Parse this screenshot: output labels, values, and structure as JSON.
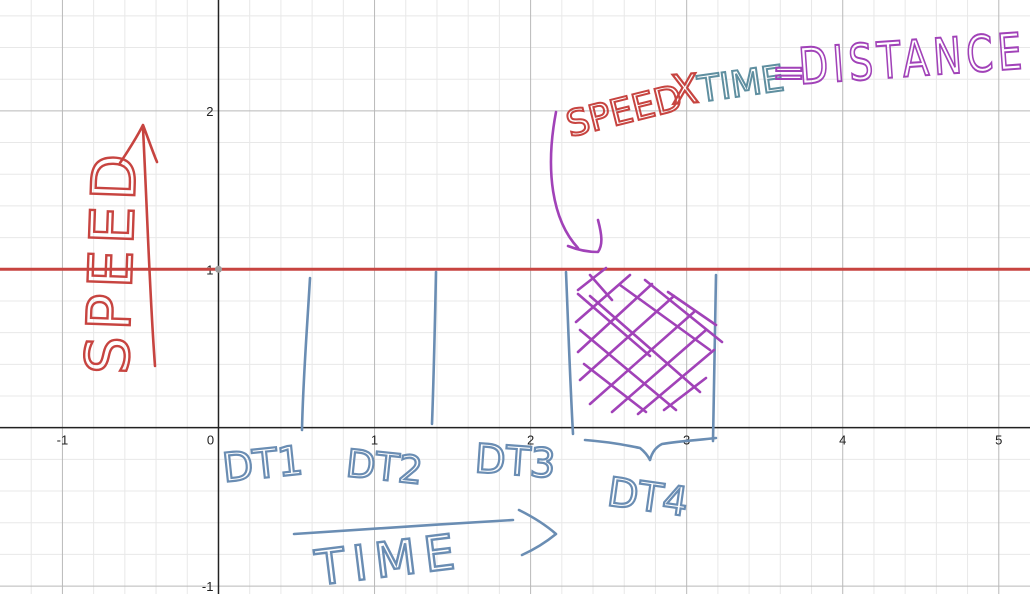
{
  "chart_data": {
    "type": "line",
    "title": "",
    "xlim": [
      -1.4,
      5.2
    ],
    "ylim": [
      -1.05,
      2.7
    ],
    "x_ticks": [
      -1,
      0,
      1,
      2,
      3,
      4,
      5
    ],
    "y_ticks": [
      -1,
      1,
      2
    ],
    "origin_label": "0",
    "series": [
      {
        "name": "speed",
        "expression": "y = 1",
        "x": [
          -1.4,
          5.2
        ],
        "y": [
          1,
          1
        ],
        "color": "#c74440"
      }
    ],
    "intervals": [
      {
        "label": "DT1",
        "x_end": 0.55
      },
      {
        "label": "DT2",
        "x_end": 1.37
      },
      {
        "label": "DT3",
        "x_end": 2.25
      },
      {
        "label": "DT4",
        "x_start": 2.25,
        "x_end": 3.2,
        "shaded": true
      }
    ],
    "annotations": {
      "y_axis_label": "SPEED",
      "x_axis_label": "TIME",
      "formula_speed": "SPEED",
      "formula_times": "X",
      "formula_time": "TIME",
      "formula_eq": "=",
      "formula_distance": "DISTANCE"
    },
    "colors": {
      "line": "#c74440",
      "blue_ink": "#6a8db3",
      "purple_ink": "#a142b8",
      "red_ink": "#c74440",
      "teal_ink": "#5f8fa0"
    }
  }
}
